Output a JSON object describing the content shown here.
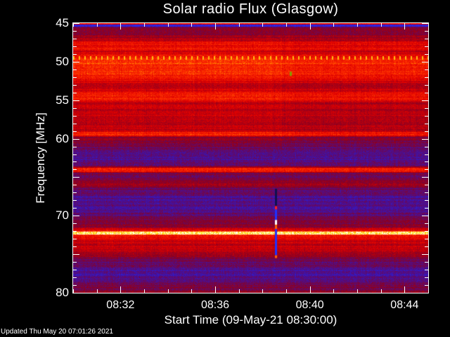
{
  "chart_data": {
    "type": "heatmap",
    "title": "Solar radio Flux (Glasgow)",
    "xlabel": "Start Time (09-May-21 08:30:00)",
    "ylabel": "Frequency [MHz]",
    "x_range": [
      "08:30",
      "08:45"
    ],
    "x_ticks": [
      "08:32",
      "08:36",
      "08:40",
      "08:44"
    ],
    "x_tick_minutes": [
      2,
      6,
      10,
      14
    ],
    "ylim": [
      45,
      80
    ],
    "y_inverted": true,
    "y_ticks": [
      "45",
      "50",
      "55",
      "60",
      "70",
      "80"
    ],
    "colormap": [
      "#2028ff",
      "#4012a4",
      "#8a0020",
      "#e00000",
      "#ff3000",
      "#ffa000",
      "#ffff40",
      "#ffffff"
    ],
    "intensity_profile": [
      [
        45.0,
        0.6
      ],
      [
        45.15,
        0.6
      ],
      [
        45.2,
        0.02
      ],
      [
        45.45,
        0.02
      ],
      [
        45.5,
        0.35
      ],
      [
        46.5,
        0.4
      ],
      [
        47.3,
        0.5
      ],
      [
        47.6,
        0.62
      ],
      [
        48.4,
        0.62
      ],
      [
        48.7,
        0.5
      ],
      [
        49.2,
        0.62
      ],
      [
        49.6,
        0.7
      ],
      [
        50.2,
        0.72
      ],
      [
        51,
        0.7
      ],
      [
        52,
        0.66
      ],
      [
        52.6,
        0.55
      ],
      [
        53.2,
        0.45
      ],
      [
        53.8,
        0.55
      ],
      [
        54.3,
        0.66
      ],
      [
        54.9,
        0.66
      ],
      [
        55.3,
        0.5
      ],
      [
        57,
        0.5
      ],
      [
        58.9,
        0.48
      ],
      [
        59.3,
        0.7
      ],
      [
        59.6,
        0.68
      ],
      [
        59.8,
        0.4
      ],
      [
        61,
        0.3
      ],
      [
        62,
        0.22
      ],
      [
        63.5,
        0.28
      ],
      [
        63.9,
        0.68
      ],
      [
        64.3,
        0.66
      ],
      [
        64.5,
        0.3
      ],
      [
        65.5,
        0.35
      ],
      [
        66,
        0.45
      ],
      [
        66.5,
        0.3
      ],
      [
        68,
        0.2
      ],
      [
        69.5,
        0.25
      ],
      [
        70.5,
        0.35
      ],
      [
        71.5,
        0.4
      ],
      [
        72,
        0.7
      ],
      [
        72.15,
        0.97
      ],
      [
        72.4,
        0.93
      ],
      [
        72.5,
        0.66
      ],
      [
        73.5,
        0.55
      ],
      [
        75,
        0.45
      ],
      [
        76,
        0.3
      ],
      [
        77.5,
        0.2
      ],
      [
        78.5,
        0.3
      ],
      [
        80,
        0.4
      ]
    ],
    "interference_line_mhz": 49.5,
    "burst": {
      "time_min": 8.57,
      "freq_range": [
        66.5,
        75.5
      ]
    }
  },
  "footer": {
    "updated": "Updated Thu May 20 07:01:26 2021"
  }
}
